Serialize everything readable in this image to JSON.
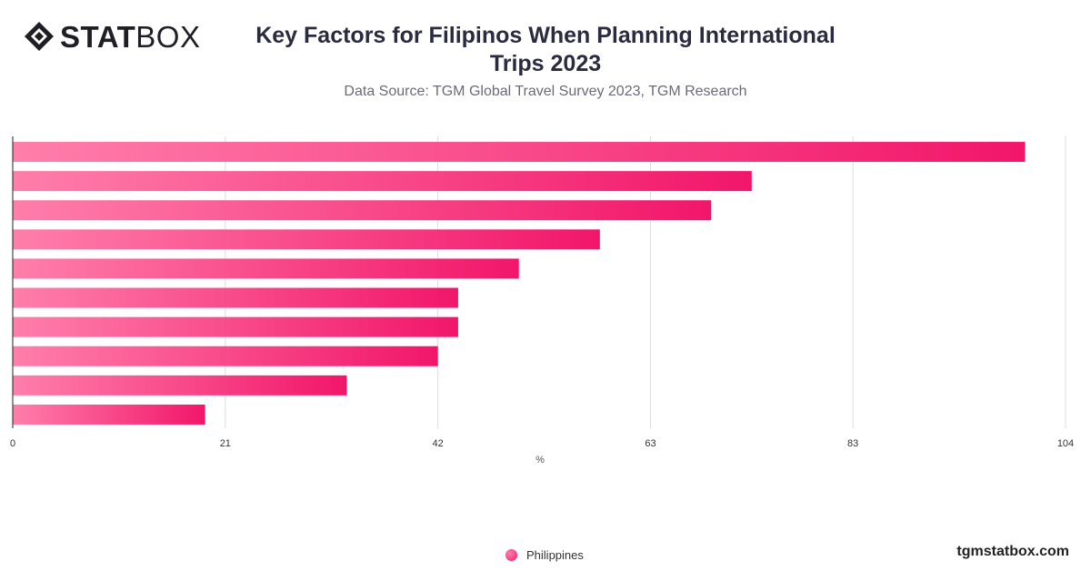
{
  "brand": {
    "logo_bold": "STAT",
    "logo_light": "BOX",
    "site": "tgmstatbox.com"
  },
  "header": {
    "title": "Key Factors for Filipinos When Planning International Trips 2023",
    "subtitle": "Data Source: TGM Global Travel Survey 2023, TGM Research"
  },
  "legend": {
    "label": "Philippines"
  },
  "colors": {
    "bar_start": "#ff7eaa",
    "bar_end": "#f2166a",
    "grid": "#dddddd",
    "axis": "#222222"
  },
  "chart_data": {
    "type": "bar",
    "orientation": "horizontal",
    "xlabel": "%",
    "xticks": [
      "0",
      "21",
      "42",
      "63",
      "83",
      "104"
    ],
    "xlim": [
      0,
      104
    ],
    "grid": true,
    "legend_position": "bottom",
    "series": [
      {
        "name": "Philippines",
        "values": [
          100,
          73,
          69,
          58,
          50,
          44,
          44,
          42,
          33,
          19
        ]
      }
    ]
  }
}
